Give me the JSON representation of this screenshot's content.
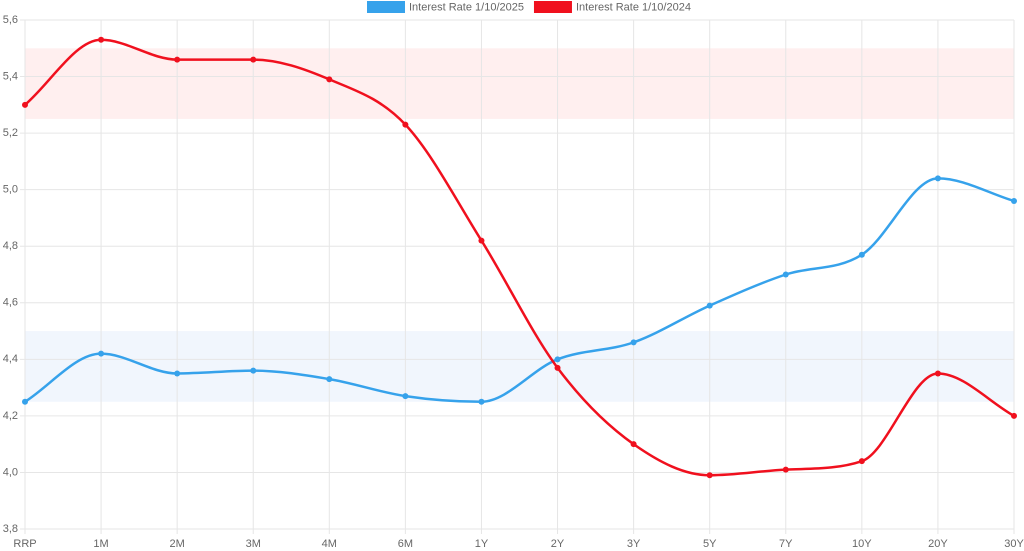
{
  "chart_data": {
    "type": "line",
    "categories": [
      "RRP",
      "1M",
      "2M",
      "3M",
      "4M",
      "6M",
      "1Y",
      "2Y",
      "3Y",
      "5Y",
      "7Y",
      "10Y",
      "20Y",
      "30Y"
    ],
    "series": [
      {
        "name": "Interest Rate 1/10/2025",
        "color": "#36a2eb",
        "values": [
          4.25,
          4.42,
          4.35,
          4.36,
          4.33,
          4.27,
          4.25,
          4.4,
          4.46,
          4.59,
          4.7,
          4.77,
          5.04,
          4.96
        ]
      },
      {
        "name": "Interest Rate 1/10/2024",
        "color": "#f0101e",
        "values": [
          5.3,
          5.53,
          5.46,
          5.46,
          5.39,
          5.23,
          4.82,
          4.37,
          4.1,
          3.99,
          4.01,
          4.04,
          4.35,
          4.2
        ]
      }
    ],
    "bands": [
      {
        "from": 5.25,
        "to": 5.5,
        "color": "rgba(255,120,120,0.12)"
      },
      {
        "from": 4.25,
        "to": 4.5,
        "color": "rgba(120,170,240,0.10)"
      }
    ],
    "ylim": [
      3.8,
      5.6
    ],
    "yticks": [
      {
        "value": 3.8,
        "label": "3,8"
      },
      {
        "value": 4.0,
        "label": "4,0"
      },
      {
        "value": 4.2,
        "label": "4,2"
      },
      {
        "value": 4.4,
        "label": "4,4"
      },
      {
        "value": 4.6,
        "label": "4,6"
      },
      {
        "value": 4.8,
        "label": "4,8"
      },
      {
        "value": 5.0,
        "label": "5,0"
      },
      {
        "value": 5.2,
        "label": "5,2"
      },
      {
        "value": 5.4,
        "label": "5,4"
      },
      {
        "value": 5.6,
        "label": "5,6"
      }
    ],
    "grid": true,
    "legend": "top"
  }
}
